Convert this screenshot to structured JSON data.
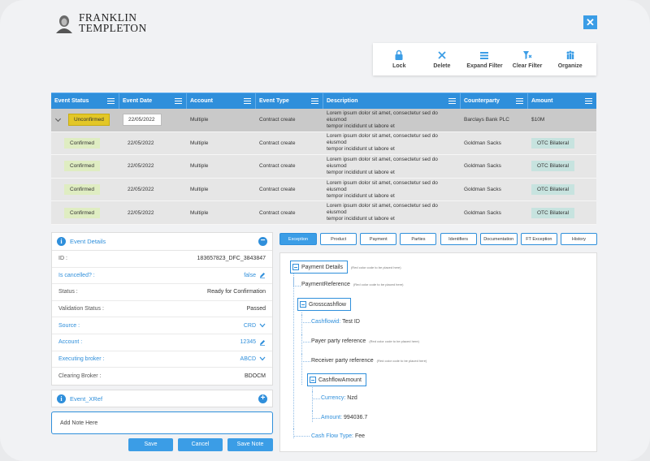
{
  "brand": {
    "line1": "FRANKLIN",
    "line2": "TEMPLETON"
  },
  "close_label": "✕",
  "toolbar": {
    "lock": "Lock",
    "delete": "Delete",
    "expand_filter": "Expand Filter",
    "clear_filter": "Clear Filter",
    "organize": "Organize"
  },
  "grid": {
    "columns": [
      "Event Status",
      "Event Date",
      "Account",
      "Event Type",
      "Description",
      "Counterparty",
      "Amount"
    ],
    "rows": [
      {
        "status": "Unconfirmed",
        "date": "22/05/2022",
        "account": "Multiple",
        "type": "Contract create",
        "desc1": "Lorem ipsum dolor sit amet, consectetur  sed do eiusmod",
        "desc2": "tempor incididunt ut labore et",
        "counterparty": "Barclays Bank PLC",
        "amount": "$10M"
      },
      {
        "status": "Confirmed",
        "date": "22/05/2022",
        "account": "Multiple",
        "type": "Contract create",
        "desc1": "Lorem ipsum dolor sit amet, consectetur  sed do eiusmod",
        "desc2": "tempor incididunt ut labore et",
        "counterparty": "Goldman Sacks",
        "amount": "OTC Bilateral"
      },
      {
        "status": "Confirmed",
        "date": "22/05/2022",
        "account": "Multiple",
        "type": "Contract create",
        "desc1": "Lorem ipsum dolor sit amet, consectetur  sed do eiusmod",
        "desc2": "tempor incididunt ut labore et",
        "counterparty": "Goldman Sacks",
        "amount": "OTC Bilateral"
      },
      {
        "status": "Confirmed",
        "date": "22/05/2022",
        "account": "Multiple",
        "type": "Contract create",
        "desc1": "Lorem ipsum dolor sit amet, consectetur  sed do eiusmod",
        "desc2": "tempor incididunt ut labore et",
        "counterparty": "Goldman Sacks",
        "amount": "OTC Bilateral"
      },
      {
        "status": "Confirmed",
        "date": "22/05/2022",
        "account": "Multiple",
        "type": "Contract create",
        "desc1": "Lorem ipsum dolor sit amet, consectetur  sed do eiusmod",
        "desc2": "tempor incididunt ut labore et",
        "counterparty": "Goldman Sacks",
        "amount": "OTC Bilateral"
      }
    ]
  },
  "event_details": {
    "title": "Event Details",
    "collapse": "−",
    "fields": [
      {
        "label": "ID :",
        "value": "183657823_DFC_3843847"
      },
      {
        "label": "Is cancelled? :",
        "value": "false"
      },
      {
        "label": "Status :",
        "value": "Ready for Confirmation"
      },
      {
        "label": "Validation Status :",
        "value": "Passed"
      },
      {
        "label": "Source :",
        "value": "CRD"
      },
      {
        "label": "Account :",
        "value": "12345"
      },
      {
        "label": "Executing broker :",
        "value": "ABCD"
      },
      {
        "label": "Clearing Broker :",
        "value": "BDOCM"
      }
    ]
  },
  "xref": {
    "title": "Event_XRef",
    "expand": "+"
  },
  "note_placeholder": "Add Note Here",
  "buttons": {
    "save": "Save",
    "cancel": "Cancel",
    "save_note": "Save Note"
  },
  "tabs": [
    "Exception",
    "Product",
    "Payment",
    "Parties",
    "Identifiers",
    "Documentation",
    "FT Exception",
    "History"
  ],
  "tree": {
    "payment_details": "Payment Details",
    "payment_reference": "PaymentReference",
    "grosscashflow": "Grosscashflow",
    "cashflowid_label": "Cashflowid:",
    "cashflowid_value": "Test ID",
    "payer": "Payer party reference",
    "receiver": "Receiver party reference",
    "cashflow_amount": "CashflowAmount",
    "currency_label": "Currency:",
    "currency_value": "Nzd",
    "amount_label": "Amount:",
    "amount_value": "994036.7",
    "cashflow_type_label": "Cash Flow Type:",
    "cashflow_type_value": "Fee",
    "color_note": "(Red color code to be placed here)"
  },
  "colors": {
    "accent": "#2f8fdb",
    "unconfirmed": "#e3c727",
    "confirmed": "#dfedc2",
    "otc": "#c7e3df"
  }
}
